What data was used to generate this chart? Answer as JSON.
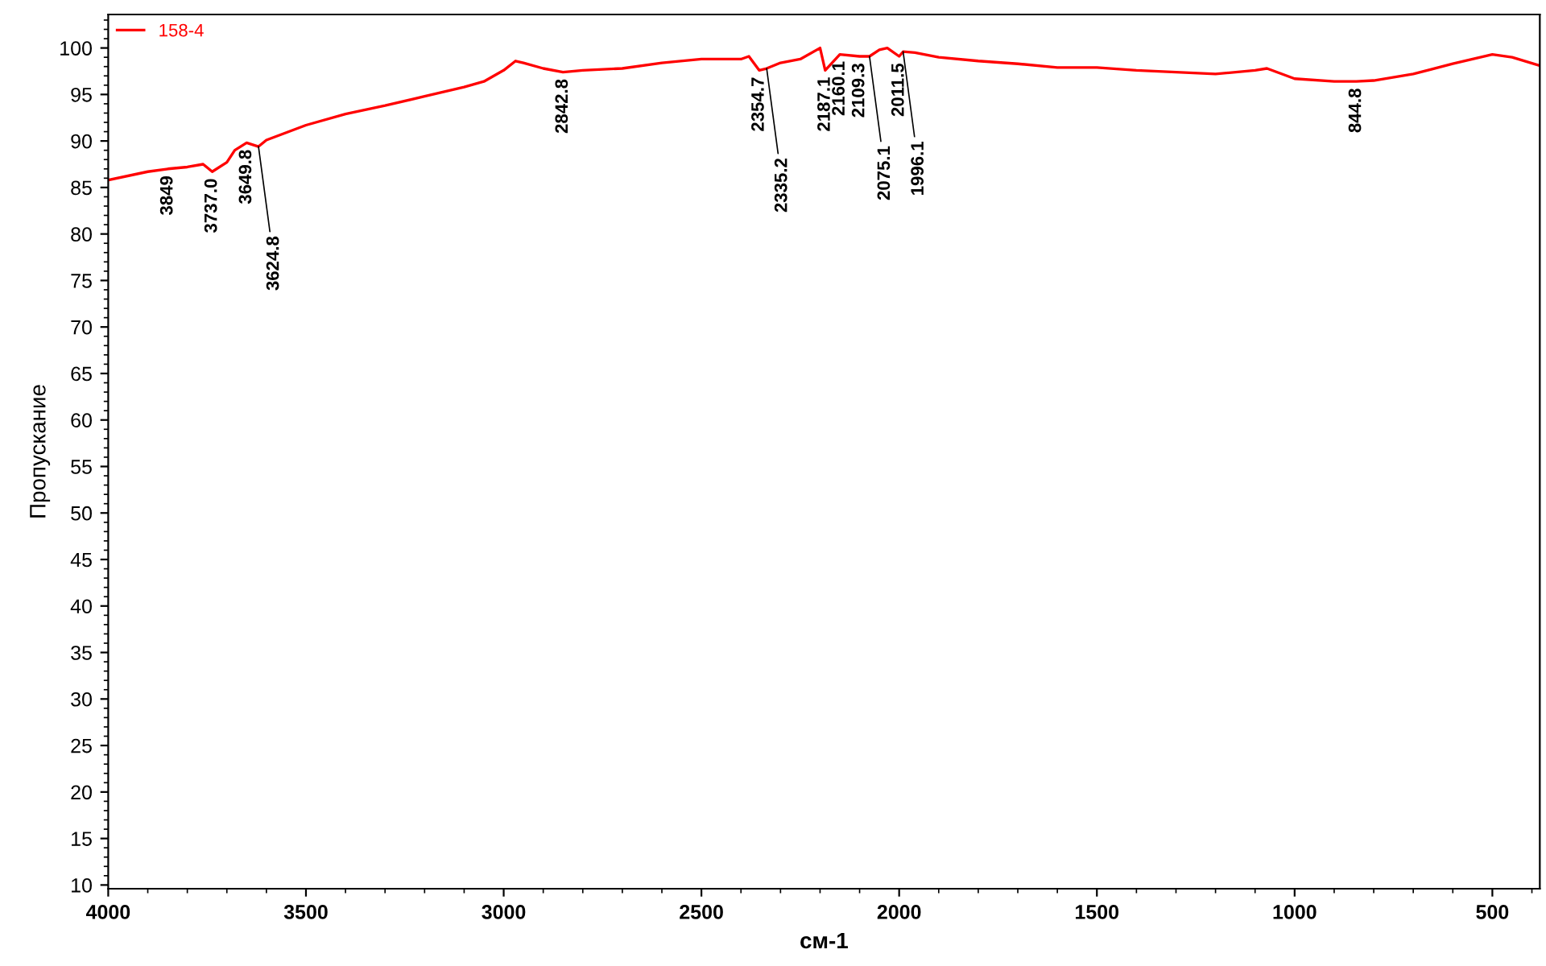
{
  "chart_data": {
    "type": "line",
    "xlabel": "см-1",
    "ylabel": "Пропускание",
    "xlim": [
      4000,
      380
    ],
    "ylim": [
      9.6,
      103.6
    ],
    "xticks": [
      4000,
      3500,
      3000,
      2500,
      2000,
      1500,
      1000,
      500
    ],
    "yticks": [
      10,
      15,
      20,
      25,
      30,
      35,
      40,
      45,
      50,
      55,
      60,
      65,
      70,
      75,
      80,
      85,
      90,
      95,
      100
    ],
    "grid": false,
    "legend": "top left",
    "marker": "none",
    "line_style": "solid",
    "series": [
      {
        "name": "158-4",
        "color": "#ff0000",
        "x": [
          4000,
          3900,
          3849,
          3800,
          3760,
          3737,
          3700,
          3680,
          3650,
          3620,
          3600,
          3500,
          3400,
          3300,
          3200,
          3100,
          3050,
          3000,
          2970,
          2950,
          2900,
          2850,
          2800,
          2700,
          2600,
          2500,
          2400,
          2380,
          2354,
          2335,
          2300,
          2250,
          2200,
          2187,
          2150,
          2100,
          2075,
          2050,
          2030,
          2000,
          1990,
          1960,
          1900,
          1800,
          1700,
          1600,
          1500,
          1400,
          1300,
          1200,
          1100,
          1070,
          1000,
          900,
          844,
          800,
          700,
          600,
          500,
          450,
          380
        ],
        "values": [
          85.8,
          86.7,
          87,
          87.2,
          87.5,
          86.7,
          87.7,
          89,
          89.8,
          89.4,
          90.1,
          91.7,
          92.9,
          93.8,
          94.8,
          95.8,
          96.4,
          97.6,
          98.6,
          98.4,
          97.8,
          97.4,
          97.6,
          97.8,
          98.4,
          98.8,
          98.8,
          99.1,
          97.6,
          97.8,
          98.4,
          98.8,
          100,
          97.6,
          99.3,
          99.1,
          99.1,
          99.8,
          100,
          99.1,
          99.6,
          99.5,
          99,
          98.6,
          98.3,
          97.9,
          97.9,
          97.6,
          97.4,
          97.2,
          97.6,
          97.8,
          96.7,
          96.4,
          96.4,
          96.5,
          97.2,
          98.3,
          99.3,
          99,
          98.1
        ]
      }
    ],
    "annotations": [
      {
        "text": "3849",
        "x": 3849,
        "y": 87
      },
      {
        "text": "3737.0",
        "x": 3737,
        "y": 86.7
      },
      {
        "text": "3649.8",
        "x": 3650,
        "y": 89.8
      },
      {
        "text": "3624.8",
        "x": 3620,
        "y": 89.4
      },
      {
        "text": "2842.8",
        "x": 2850,
        "y": 97.4
      },
      {
        "text": "2354.7",
        "x": 2354,
        "y": 97.6
      },
      {
        "text": "2335.2",
        "x": 2335,
        "y": 97.8
      },
      {
        "text": "2187.1",
        "x": 2187,
        "y": 97.6
      },
      {
        "text": "2160.1",
        "x": 2150,
        "y": 99.3
      },
      {
        "text": "2109.3",
        "x": 2100,
        "y": 99.1
      },
      {
        "text": "2075.1",
        "x": 2075,
        "y": 99.1
      },
      {
        "text": "2011.5",
        "x": 2000,
        "y": 99.1
      },
      {
        "text": "1996.1",
        "x": 1990,
        "y": 99.6
      },
      {
        "text": "844.8",
        "x": 844,
        "y": 96.4
      }
    ]
  }
}
